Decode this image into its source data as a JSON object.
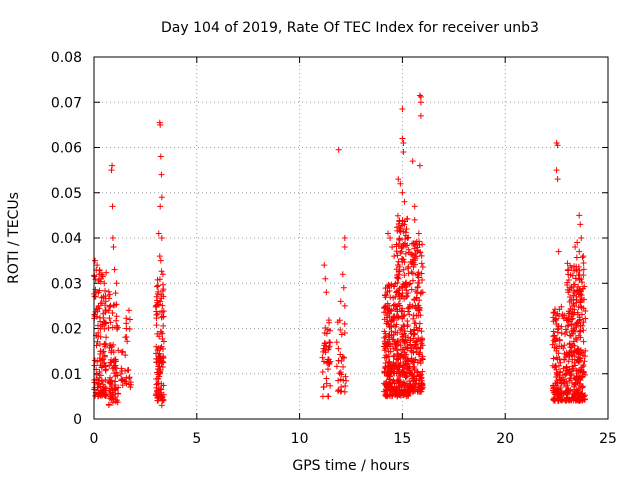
{
  "chart_data": {
    "type": "scatter",
    "title": "Day 104 of 2019, Rate Of TEC Index for receiver unb3",
    "xlabel": "GPS time / hours",
    "ylabel": "ROTI / TECUs",
    "xlim": [
      0,
      25
    ],
    "ylim": [
      0,
      0.08
    ],
    "xticks": [
      "0",
      "5",
      "10",
      "15",
      "20",
      "25"
    ],
    "yticks": [
      "0",
      "0.01",
      "0.02",
      "0.03",
      "0.04",
      "0.05",
      "0.06",
      "0.07",
      "0.08"
    ],
    "grid": true,
    "marker": "+",
    "color": "#ff0000",
    "clusters": [
      {
        "x_range": [
          0.0,
          0.6
        ],
        "y_range": [
          0.005,
          0.033
        ],
        "count": 140
      },
      {
        "x_range": [
          0.7,
          1.2
        ],
        "y_range": [
          0.003,
          0.03
        ],
        "count": 90
      },
      {
        "x_range": [
          1.3,
          1.8
        ],
        "y_range": [
          0.007,
          0.024
        ],
        "count": 30
      },
      {
        "x_range": [
          3.0,
          3.4
        ],
        "y_range": [
          0.004,
          0.033
        ],
        "count": 120
      },
      {
        "x_range": [
          11.1,
          11.5
        ],
        "y_range": [
          0.005,
          0.022
        ],
        "count": 40
      },
      {
        "x_range": [
          11.8,
          12.3
        ],
        "y_range": [
          0.006,
          0.022
        ],
        "count": 30
      },
      {
        "x_range": [
          14.1,
          14.7
        ],
        "y_range": [
          0.005,
          0.03
        ],
        "count": 200
      },
      {
        "x_range": [
          14.7,
          15.3
        ],
        "y_range": [
          0.005,
          0.045
        ],
        "count": 260
      },
      {
        "x_range": [
          15.3,
          16.0
        ],
        "y_range": [
          0.006,
          0.04
        ],
        "count": 220
      },
      {
        "x_range": [
          22.3,
          23.0
        ],
        "y_range": [
          0.004,
          0.025
        ],
        "count": 150
      },
      {
        "x_range": [
          23.0,
          23.9
        ],
        "y_range": [
          0.004,
          0.036
        ],
        "count": 300
      }
    ],
    "points": [
      [
        0.05,
        0.035
      ],
      [
        0.15,
        0.034
      ],
      [
        0.25,
        0.032
      ],
      [
        0.35,
        0.031
      ],
      [
        0.5,
        0.03
      ],
      [
        0.85,
        0.055
      ],
      [
        0.88,
        0.056
      ],
      [
        0.9,
        0.047
      ],
      [
        0.92,
        0.04
      ],
      [
        0.95,
        0.038
      ],
      [
        1.0,
        0.033
      ],
      [
        1.1,
        0.03
      ],
      [
        1.7,
        0.024
      ],
      [
        1.75,
        0.022
      ],
      [
        3.2,
        0.0655
      ],
      [
        3.22,
        0.065
      ],
      [
        3.25,
        0.058
      ],
      [
        3.28,
        0.054
      ],
      [
        3.3,
        0.049
      ],
      [
        3.22,
        0.047
      ],
      [
        3.3,
        0.04
      ],
      [
        3.15,
        0.041
      ],
      [
        3.2,
        0.036
      ],
      [
        3.25,
        0.035
      ],
      [
        3.3,
        0.003
      ],
      [
        11.2,
        0.034
      ],
      [
        11.25,
        0.031
      ],
      [
        11.3,
        0.028
      ],
      [
        11.9,
        0.0595
      ],
      [
        12.0,
        0.026
      ],
      [
        12.2,
        0.04
      ],
      [
        12.2,
        0.038
      ],
      [
        12.1,
        0.032
      ],
      [
        12.15,
        0.029
      ],
      [
        12.2,
        0.025
      ],
      [
        12.2,
        0.019
      ],
      [
        12.2,
        0.006
      ],
      [
        14.3,
        0.041
      ],
      [
        14.4,
        0.04
      ],
      [
        14.5,
        0.038
      ],
      [
        14.6,
        0.036
      ],
      [
        14.8,
        0.053
      ],
      [
        14.9,
        0.052
      ],
      [
        15.0,
        0.05
      ],
      [
        15.1,
        0.048
      ],
      [
        15.0,
        0.0685
      ],
      [
        15.0,
        0.062
      ],
      [
        15.05,
        0.061
      ],
      [
        15.05,
        0.059
      ],
      [
        15.2,
        0.042
      ],
      [
        15.25,
        0.04
      ],
      [
        15.5,
        0.057
      ],
      [
        15.6,
        0.047
      ],
      [
        15.6,
        0.044
      ],
      [
        15.85,
        0.0715
      ],
      [
        15.9,
        0.0712
      ],
      [
        15.9,
        0.07
      ],
      [
        15.9,
        0.067
      ],
      [
        15.85,
        0.056
      ],
      [
        15.8,
        0.041
      ],
      [
        22.5,
        0.061
      ],
      [
        22.55,
        0.0605
      ],
      [
        22.5,
        0.055
      ],
      [
        22.55,
        0.053
      ],
      [
        22.6,
        0.037
      ],
      [
        23.6,
        0.045
      ],
      [
        23.65,
        0.043
      ],
      [
        23.7,
        0.04
      ],
      [
        23.5,
        0.039
      ],
      [
        23.4,
        0.038
      ],
      [
        23.6,
        0.037
      ],
      [
        23.8,
        0.036
      ]
    ]
  }
}
